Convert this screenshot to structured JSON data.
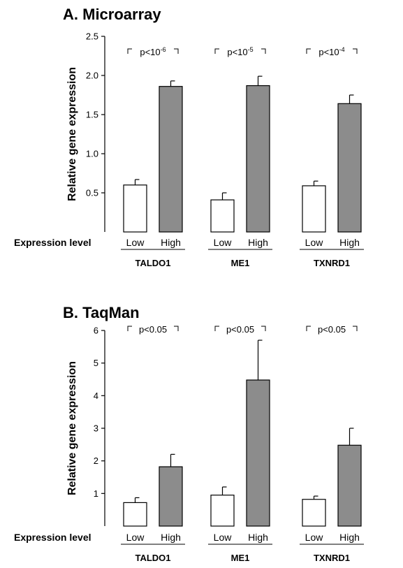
{
  "row_label": "Expression level",
  "chart_data": [
    {
      "type": "bar",
      "title": "A. Microarray",
      "ylabel": "Relative gene expression",
      "ylim": [
        0,
        2.5
      ],
      "yticks": [
        "0.5",
        "1.0",
        "1.5",
        "2.0",
        "2.5"
      ],
      "ytick_values": [
        0.5,
        1.0,
        1.5,
        2.0,
        2.5
      ],
      "categories": [
        "TALDO1",
        "ME1",
        "TXNRD1"
      ],
      "subcategories": [
        "Low",
        "High"
      ],
      "series": [
        {
          "name": "Low",
          "values": [
            0.6,
            0.41,
            0.59
          ],
          "errors": [
            0.07,
            0.09,
            0.06
          ]
        },
        {
          "name": "High",
          "values": [
            1.86,
            1.87,
            1.64
          ],
          "errors": [
            0.07,
            0.12,
            0.11
          ]
        }
      ],
      "annotations": [
        {
          "text": "p<10",
          "exponent": "-6"
        },
        {
          "text": "p<10",
          "exponent": "-5"
        },
        {
          "text": "p<10",
          "exponent": "-4"
        }
      ],
      "colors": {
        "Low": "#ffffff",
        "High": "#8c8c8c"
      }
    },
    {
      "type": "bar",
      "title": "B. TaqMan",
      "ylabel": "Relative gene expression",
      "ylim": [
        0,
        6
      ],
      "yticks": [
        "1",
        "2",
        "3",
        "4",
        "5",
        "6"
      ],
      "ytick_values": [
        1,
        2,
        3,
        4,
        5,
        6
      ],
      "categories": [
        "TALDO1",
        "ME1",
        "TXNRD1"
      ],
      "subcategories": [
        "Low",
        "High"
      ],
      "series": [
        {
          "name": "Low",
          "values": [
            0.72,
            0.95,
            0.82
          ],
          "errors": [
            0.15,
            0.25,
            0.1
          ]
        },
        {
          "name": "High",
          "values": [
            1.82,
            4.48,
            2.48
          ],
          "errors": [
            0.38,
            1.22,
            0.52
          ]
        }
      ],
      "annotations": [
        {
          "text": "p<0.05",
          "exponent": ""
        },
        {
          "text": "p<0.05",
          "exponent": ""
        },
        {
          "text": "p<0.05",
          "exponent": ""
        }
      ],
      "colors": {
        "Low": "#ffffff",
        "High": "#8c8c8c"
      }
    }
  ]
}
